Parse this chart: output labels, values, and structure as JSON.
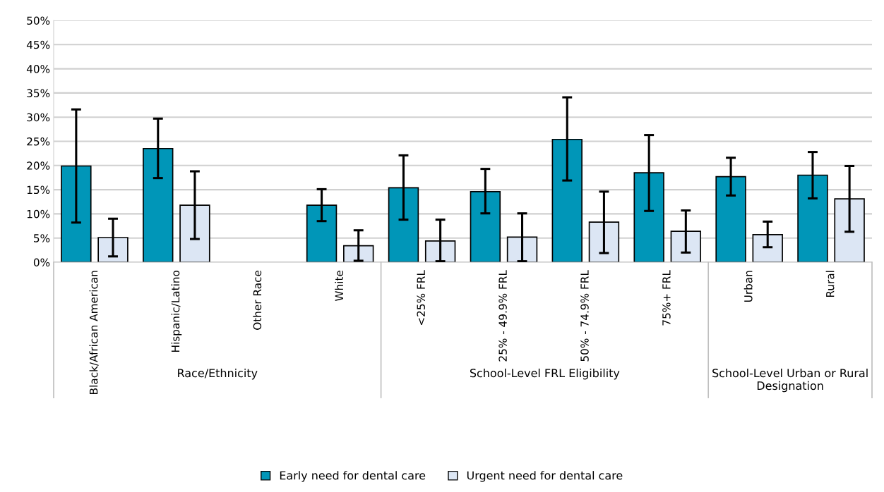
{
  "chart_data": {
    "type": "bar",
    "categories": [
      "Black/African American",
      "Hispanic/Latino",
      "Other Race",
      "White",
      "<25% FRL",
      "25% - 49.9% FRL",
      "50% - 74.9% FRL",
      "75%+ FRL",
      "Urban",
      "Rural"
    ],
    "series": [
      {
        "name": "Early need for dental care",
        "color": "#0096b8",
        "values": [
          19.9,
          23.5,
          null,
          11.8,
          15.4,
          14.6,
          25.4,
          18.5,
          17.7,
          18.0
        ],
        "errors": [
          [
            8.2,
            31.6
          ],
          [
            17.4,
            29.7
          ],
          null,
          [
            8.5,
            15.1
          ],
          [
            8.8,
            22.1
          ],
          [
            10.1,
            19.3
          ],
          [
            16.9,
            34.1
          ],
          [
            10.6,
            26.3
          ],
          [
            13.8,
            21.6
          ],
          [
            13.2,
            22.8
          ]
        ]
      },
      {
        "name": "Urgent need for dental care",
        "color": "#dce6f4",
        "values": [
          5.1,
          11.8,
          null,
          3.4,
          4.4,
          5.2,
          8.3,
          6.4,
          5.7,
          13.1
        ],
        "errors": [
          [
            1.2,
            9.0
          ],
          [
            4.8,
            18.8
          ],
          null,
          [
            0.3,
            6.6
          ],
          [
            0.2,
            8.8
          ],
          [
            0.2,
            10.1
          ],
          [
            1.9,
            14.6
          ],
          [
            2.0,
            10.7
          ],
          [
            3.1,
            8.4
          ],
          [
            6.3,
            19.9
          ]
        ]
      }
    ],
    "annotations": [
      "Race/Ethnicity",
      "School-Level FRL Eligibility",
      "School-Level Urban or Rural Designation"
    ],
    "ylim": [
      0,
      50
    ],
    "yticks": [
      {
        "value": 0,
        "label": "0%"
      },
      {
        "value": 5,
        "label": "5%"
      },
      {
        "value": 10,
        "label": "10%"
      },
      {
        "value": 15,
        "label": "15%"
      },
      {
        "value": 20,
        "label": "20%"
      },
      {
        "value": 25,
        "label": "25%"
      },
      {
        "value": 30,
        "label": "30%"
      },
      {
        "value": 35,
        "label": "35%"
      },
      {
        "value": 40,
        "label": "40%"
      },
      {
        "value": 45,
        "label": "45%"
      },
      {
        "value": 50,
        "label": "50%"
      }
    ],
    "grid": "y",
    "legend": "bottom"
  }
}
